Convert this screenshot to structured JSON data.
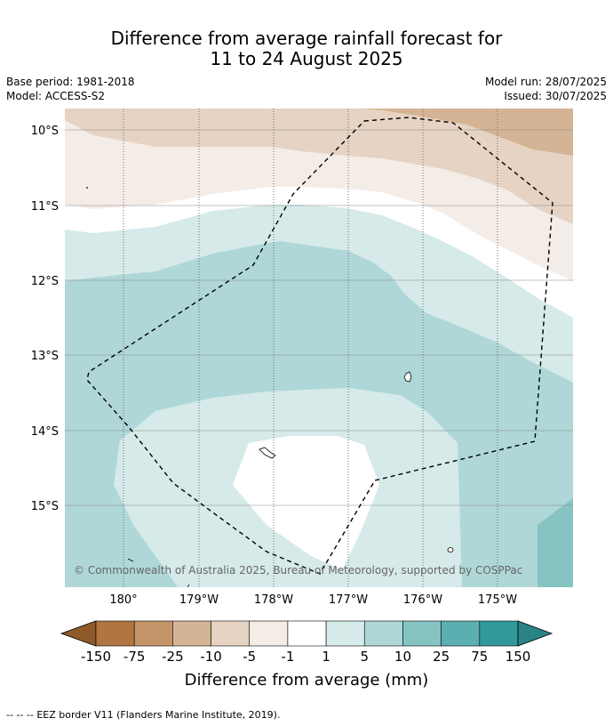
{
  "title": {
    "line1": "Difference from average rainfall forecast for",
    "line2": "11 to 24 August 2025"
  },
  "meta": {
    "base_period": "Base period: 1981-2018",
    "model": "Model: ACCESS-S2",
    "model_run": "Model run: 28/07/2025",
    "issued": "Issued: 30/07/2025"
  },
  "map": {
    "lat_labels": [
      "10°S",
      "11°S",
      "12°S",
      "13°S",
      "14°S",
      "15°S"
    ],
    "lon_labels": [
      "180°",
      "179°W",
      "178°W",
      "177°W",
      "176°W",
      "175°W"
    ],
    "lat_values": [
      -10,
      -11,
      -12,
      -13,
      -14,
      -15
    ],
    "lon_values": [
      180,
      -179,
      -178,
      -177,
      -176,
      -175
    ],
    "copyright": "© Commonwealth of Australia 2025, Bureau of Meteorology, supported by COSPPac"
  },
  "colorbar": {
    "labels": [
      "-150",
      "-75",
      "-25",
      "-10",
      "-5",
      "-1",
      "1",
      "5",
      "10",
      "25",
      "75",
      "150"
    ],
    "colors": [
      "#8f5a2a",
      "#b07540",
      "#c49469",
      "#d4b494",
      "#e6d3c3",
      "#f4ece7",
      "#ffffff",
      "#d6eae9",
      "#afd7d7",
      "#86c3c3",
      "#5cafb0",
      "#31999a",
      "#2a8486"
    ],
    "title": "Difference from average (mm)"
  },
  "footer": {
    "eez_symbol": "--  --  --",
    "eez_text": "EEZ border V11 (Flanders Marine Institute, 2019)."
  }
}
